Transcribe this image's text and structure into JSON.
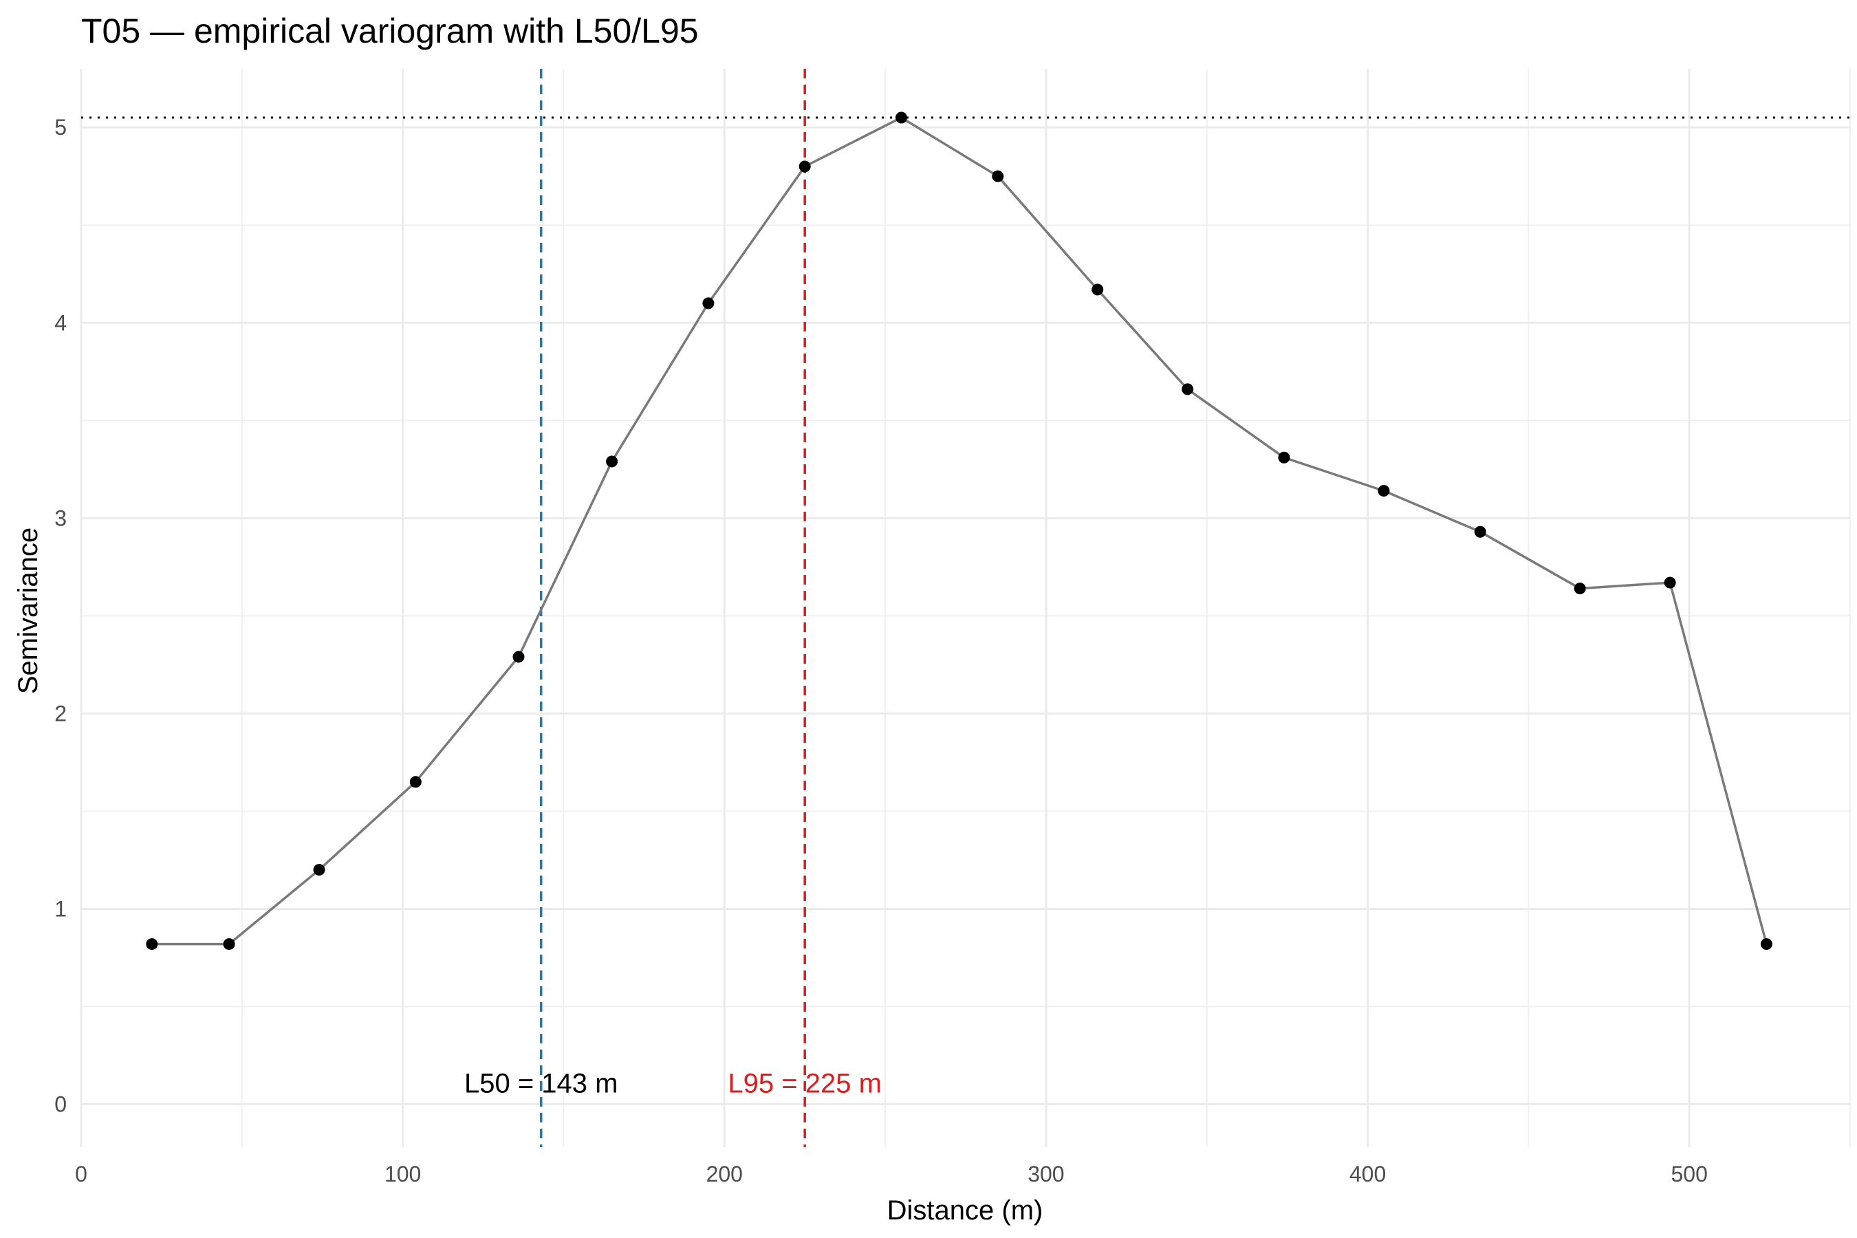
{
  "chart_data": {
    "type": "line",
    "title": "T05 — empirical variogram with L50/L95",
    "xlabel": "Distance (m)",
    "ylabel": "Semivariance",
    "xlim": [
      0,
      550
    ],
    "ylim": [
      -0.22,
      5.3
    ],
    "x_ticks": [
      0,
      100,
      200,
      300,
      400,
      500
    ],
    "x_tick_labels": [
      "0",
      "100",
      "200",
      "300",
      "400",
      "500"
    ],
    "y_ticks": [
      0,
      1,
      2,
      3,
      4,
      5
    ],
    "y_tick_labels": [
      "0",
      "1",
      "2",
      "3",
      "4",
      "5"
    ],
    "grid": true,
    "series": [
      {
        "x": [
          22,
          46,
          74,
          104,
          136,
          165,
          195,
          225,
          255,
          285,
          316,
          344,
          374,
          405,
          435,
          466,
          494,
          524
        ],
        "y": [
          0.82,
          0.82,
          1.2,
          1.65,
          2.29,
          3.29,
          4.1,
          4.8,
          5.05,
          4.75,
          4.17,
          3.66,
          3.31,
          3.14,
          2.93,
          2.64,
          2.67,
          0.82
        ],
        "line_color": "#7a7a7a",
        "point_color": "#000000"
      }
    ],
    "reference_lines": [
      {
        "orientation": "horizontal",
        "value": 5.05,
        "style": "dotted",
        "color": "#000000"
      },
      {
        "orientation": "vertical",
        "value": 143,
        "style": "dashed",
        "color": "#1f78b4"
      },
      {
        "orientation": "vertical",
        "value": 225,
        "style": "dashed",
        "color": "#e31a1c"
      }
    ],
    "annotations": [
      {
        "text": "L50 = 143 m",
        "x": 143,
        "y": 0.11,
        "color": "#000000"
      },
      {
        "text": "L95 = 225 m",
        "x": 225,
        "y": 0.11,
        "color": "#e31a1c"
      }
    ]
  }
}
